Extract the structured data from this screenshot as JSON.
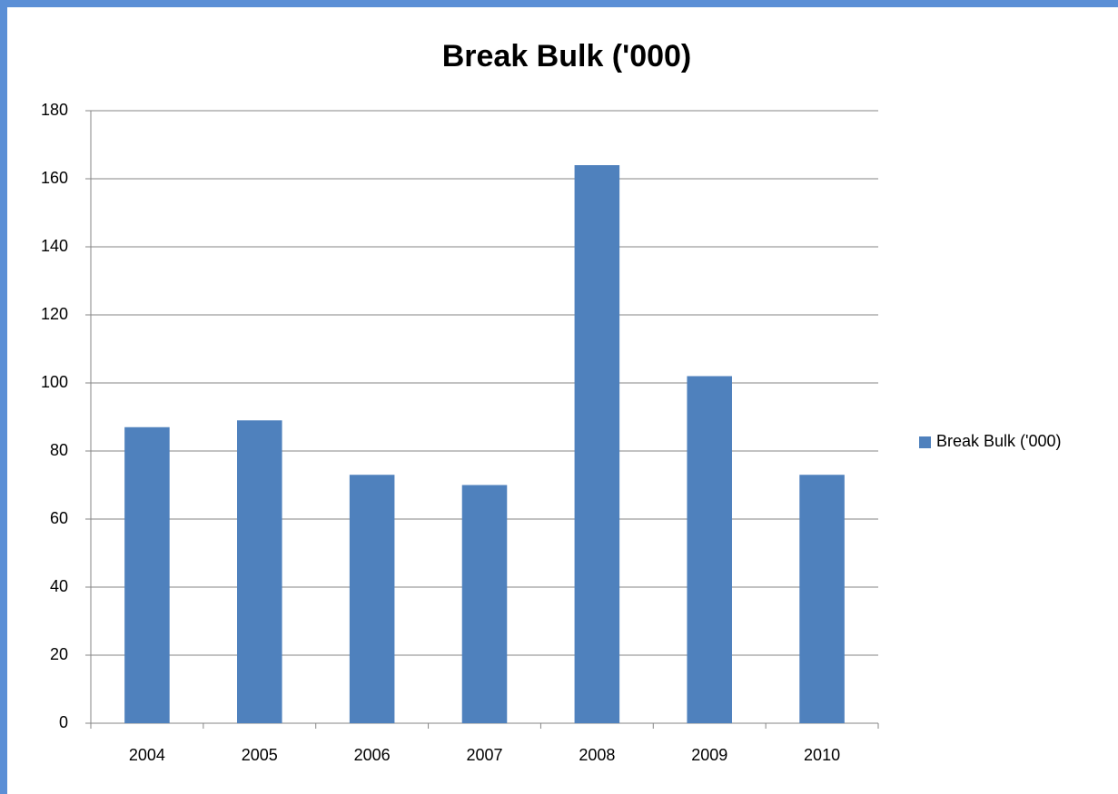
{
  "chart_data": {
    "type": "bar",
    "title": "Break Bulk ('000)",
    "categories": [
      "2004",
      "2005",
      "2006",
      "2007",
      "2008",
      "2009",
      "2010"
    ],
    "series": [
      {
        "name": "Break Bulk ('000)",
        "color": "#4f81bd",
        "values": [
          87,
          89,
          73,
          70,
          164,
          102,
          73
        ]
      }
    ],
    "ylim": [
      0,
      180
    ],
    "yticks": [
      0,
      20,
      40,
      60,
      80,
      100,
      120,
      140,
      160,
      180
    ],
    "grid": true,
    "legend": "right"
  }
}
